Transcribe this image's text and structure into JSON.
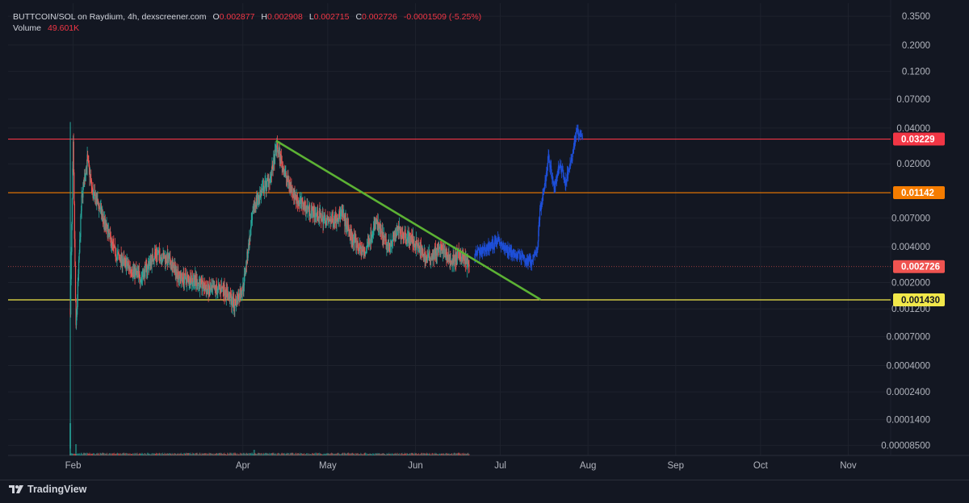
{
  "legend": {
    "symbol_info": "BUTTCOIN/SOL on Raydium, 4h, dexscreener.com",
    "open_label": "O",
    "open": "0.002877",
    "high_label": "H",
    "high": "0.002908",
    "low_label": "L",
    "low": "0.002715",
    "close_label": "C",
    "close": "0.002726",
    "change": "-0.0001509 (-5.25%)",
    "volume_label": "Volume",
    "volume": "49.601K"
  },
  "brand": {
    "name": "TradingView",
    "icon": "tradingview-logo-icon"
  },
  "colors": {
    "background": "#131722",
    "grid": "#1e222d",
    "up": "#26a69a",
    "down": "#ef5350",
    "projection": "#1e4fd8",
    "trendline": "#5cb234",
    "line_red": "#f23645",
    "line_orange": "#f57c00",
    "line_yellow": "#f2e84a",
    "last_price": "#ef5350"
  },
  "chart_data": {
    "type": "candlestick",
    "title": "BUTTCOIN/SOL on Raydium, 4h, dexscreener.com",
    "y_scale": "log",
    "ylim": [
      7e-05,
      0.45
    ],
    "xlim": [
      "2024-01-09",
      "2024-11-16"
    ],
    "y_ticks": [
      0.35,
      0.2,
      0.12,
      0.07,
      0.04,
      0.02,
      0.007,
      0.004,
      0.002,
      0.0012,
      0.0007,
      0.0004,
      0.00024,
      0.00014,
      8.5e-05
    ],
    "y_tick_labels": [
      "0.3500",
      "0.2000",
      "0.1200",
      "0.07000",
      "0.04000",
      "0.02000",
      "0.007000",
      "0.004000",
      "0.002000",
      "0.001200",
      "0.0007000",
      "0.0004000",
      "0.0002400",
      "0.0001400",
      "0.00008500"
    ],
    "x_ticks": [
      {
        "label": "Feb",
        "date": "2024-02-01"
      },
      {
        "label": "Apr",
        "date": "2024-04-01"
      },
      {
        "label": "May",
        "date": "2024-05-01"
      },
      {
        "label": "Jun",
        "date": "2024-06-01"
      },
      {
        "label": "Jul",
        "date": "2024-07-01"
      },
      {
        "label": "Aug",
        "date": "2024-08-01"
      },
      {
        "label": "Sep",
        "date": "2024-09-01"
      },
      {
        "label": "Oct",
        "date": "2024-10-01"
      },
      {
        "label": "Nov",
        "date": "2024-11-01"
      }
    ],
    "horizontal_lines": [
      {
        "price": 0.03229,
        "label": "0.03229",
        "color": "#f23645"
      },
      {
        "price": 0.01142,
        "label": "0.01142",
        "color": "#f57c00"
      },
      {
        "price": 0.00143,
        "label": "0.001430",
        "color": "#f2e84a"
      }
    ],
    "last_price": {
      "price": 0.002726,
      "label": "0.002726"
    },
    "trendline": {
      "from": {
        "date": "2024-04-13",
        "price": 0.031
      },
      "to": {
        "date": "2024-07-15",
        "price": 0.00145
      }
    },
    "price_path": [
      {
        "date": "2024-01-31",
        "price": 0.0012
      },
      {
        "date": "2024-02-01",
        "price": 0.028
      },
      {
        "date": "2024-02-02",
        "price": 0.0008
      },
      {
        "date": "2024-02-04",
        "price": 0.01
      },
      {
        "date": "2024-02-06",
        "price": 0.022
      },
      {
        "date": "2024-02-08",
        "price": 0.011
      },
      {
        "date": "2024-02-10",
        "price": 0.009
      },
      {
        "date": "2024-02-13",
        "price": 0.0055
      },
      {
        "date": "2024-02-16",
        "price": 0.0035
      },
      {
        "date": "2024-02-20",
        "price": 0.0028
      },
      {
        "date": "2024-02-25",
        "price": 0.0022
      },
      {
        "date": "2024-03-01",
        "price": 0.0035
      },
      {
        "date": "2024-03-05",
        "price": 0.0032
      },
      {
        "date": "2024-03-10",
        "price": 0.0022
      },
      {
        "date": "2024-03-15",
        "price": 0.0021
      },
      {
        "date": "2024-03-20",
        "price": 0.0017
      },
      {
        "date": "2024-03-25",
        "price": 0.0018
      },
      {
        "date": "2024-03-29",
        "price": 0.0013
      },
      {
        "date": "2024-04-01",
        "price": 0.0018
      },
      {
        "date": "2024-04-03",
        "price": 0.004
      },
      {
        "date": "2024-04-05",
        "price": 0.009
      },
      {
        "date": "2024-04-08",
        "price": 0.012
      },
      {
        "date": "2024-04-11",
        "price": 0.016
      },
      {
        "date": "2024-04-13",
        "price": 0.028
      },
      {
        "date": "2024-04-16",
        "price": 0.016
      },
      {
        "date": "2024-04-20",
        "price": 0.01
      },
      {
        "date": "2024-04-25",
        "price": 0.008
      },
      {
        "date": "2024-05-01",
        "price": 0.0065
      },
      {
        "date": "2024-05-06",
        "price": 0.0075
      },
      {
        "date": "2024-05-10",
        "price": 0.0045
      },
      {
        "date": "2024-05-14",
        "price": 0.0035
      },
      {
        "date": "2024-05-18",
        "price": 0.0065
      },
      {
        "date": "2024-05-22",
        "price": 0.004
      },
      {
        "date": "2024-05-26",
        "price": 0.0055
      },
      {
        "date": "2024-05-31",
        "price": 0.0045
      },
      {
        "date": "2024-06-05",
        "price": 0.0032
      },
      {
        "date": "2024-06-10",
        "price": 0.0038
      },
      {
        "date": "2024-06-14",
        "price": 0.003
      },
      {
        "date": "2024-06-17",
        "price": 0.0035
      },
      {
        "date": "2024-06-20",
        "price": 0.0027
      }
    ],
    "projection_path": [
      {
        "date": "2024-06-22",
        "price": 0.0035
      },
      {
        "date": "2024-06-26",
        "price": 0.0038
      },
      {
        "date": "2024-06-30",
        "price": 0.0045
      },
      {
        "date": "2024-07-03",
        "price": 0.0038
      },
      {
        "date": "2024-07-06",
        "price": 0.0035
      },
      {
        "date": "2024-07-09",
        "price": 0.0032
      },
      {
        "date": "2024-07-12",
        "price": 0.003
      },
      {
        "date": "2024-07-14",
        "price": 0.0035
      },
      {
        "date": "2024-07-15",
        "price": 0.008
      },
      {
        "date": "2024-07-17",
        "price": 0.015
      },
      {
        "date": "2024-07-18",
        "price": 0.024
      },
      {
        "date": "2024-07-20",
        "price": 0.012
      },
      {
        "date": "2024-07-22",
        "price": 0.02
      },
      {
        "date": "2024-07-24",
        "price": 0.014
      },
      {
        "date": "2024-07-26",
        "price": 0.02
      },
      {
        "date": "2024-07-28",
        "price": 0.038
      },
      {
        "date": "2024-07-30",
        "price": 0.034
      }
    ]
  }
}
